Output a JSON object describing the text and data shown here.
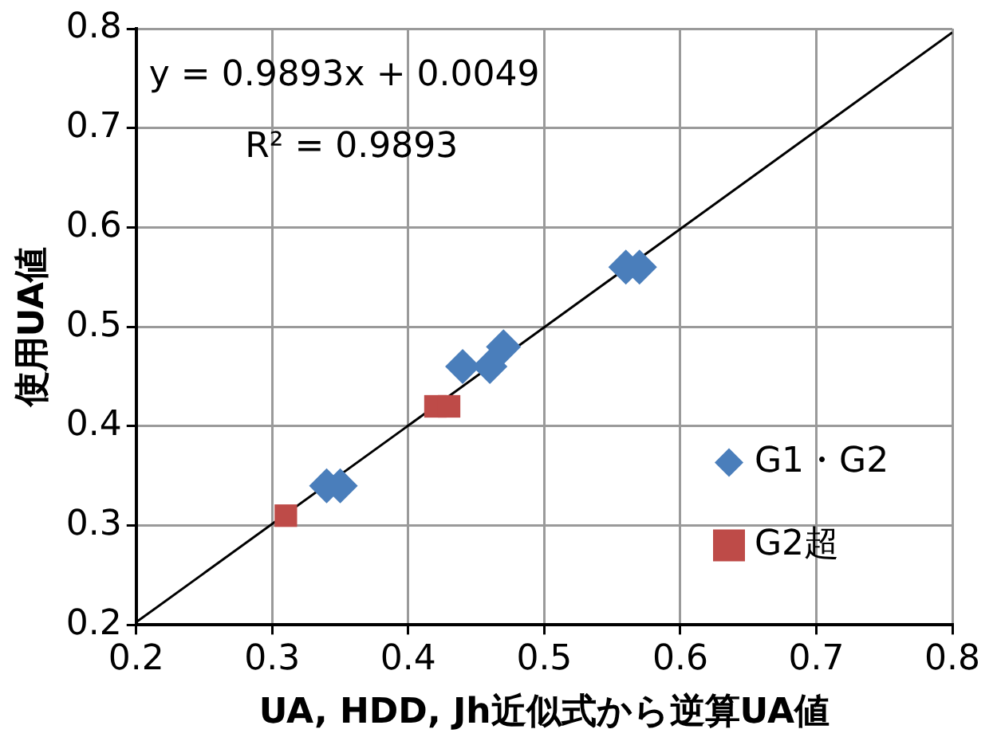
{
  "chart_data": {
    "type": "scatter",
    "xlabel": "UA, HDD, Jh近似式から逆算UA値",
    "ylabel": "使用UA値",
    "xlim": [
      0.2,
      0.8
    ],
    "xticks": [
      0.2,
      0.3,
      0.4,
      0.5,
      0.6,
      0.7,
      0.8
    ],
    "ylim": [
      0.2,
      0.8
    ],
    "yticks": [
      0.2,
      0.3,
      0.4,
      0.5,
      0.6,
      0.7,
      0.8
    ],
    "grid": true,
    "legend": "bottom right",
    "annotations": [
      "y = 0.9893x + 0.0049",
      "R² = 0.9893"
    ],
    "series": [
      {
        "name": "G1・G2",
        "color": "#4a7ebb",
        "marker": "diamond",
        "x": [
          0.34,
          0.35,
          0.44,
          0.46,
          0.47,
          0.56,
          0.57
        ],
        "values": [
          0.34,
          0.34,
          0.46,
          0.46,
          0.48,
          0.56,
          0.56
        ]
      },
      {
        "name": "G2超",
        "color": "#be4b48",
        "marker": "square",
        "x": [
          0.31,
          0.42,
          0.43
        ],
        "values": [
          0.31,
          0.42,
          0.42
        ]
      },
      {
        "type": "line",
        "color": "#000000",
        "marker": "none",
        "x": [
          0.2,
          0.8
        ],
        "values": [
          0.2028,
          0.7963
        ]
      }
    ]
  }
}
